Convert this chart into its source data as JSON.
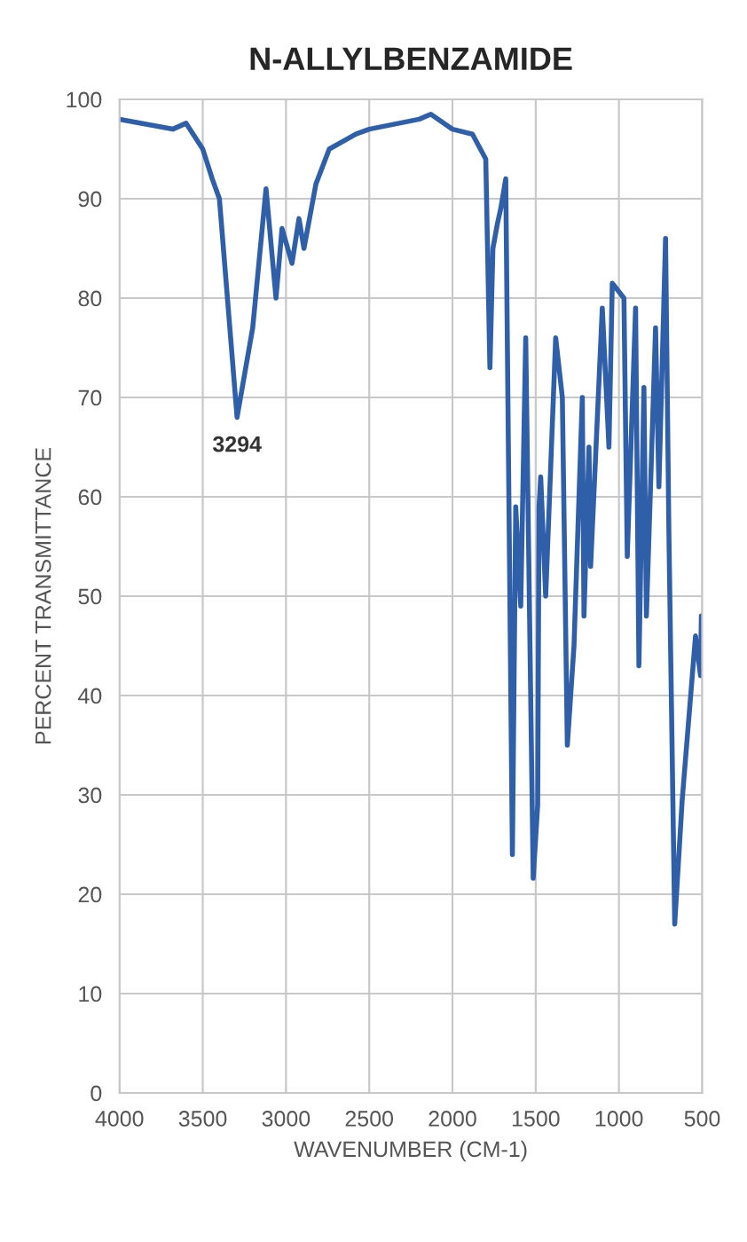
{
  "chart_data": {
    "type": "line",
    "title": "N-ALLYLBENZAMIDE",
    "xlabel": "WAVENUMBER (CM-1)",
    "ylabel": "PERCENT TRANSMITTANCE",
    "x": [
      4000,
      3680,
      3600,
      3500,
      3443,
      3400,
      3294,
      3200,
      3120,
      3060,
      3024,
      2964,
      2922,
      2892,
      2820,
      2740,
      2580,
      2500,
      2200,
      2130,
      2000,
      1880,
      1800,
      1775,
      1757,
      1730,
      1710,
      1680,
      1640,
      1620,
      1590,
      1560,
      1515,
      1488,
      1480,
      1470,
      1440,
      1380,
      1340,
      1310,
      1270,
      1220,
      1210,
      1180,
      1170,
      1100,
      1060,
      1040,
      970,
      950,
      900,
      880,
      850,
      835,
      780,
      760,
      720,
      700,
      665,
      620,
      540,
      510,
      505,
      500
    ],
    "series": [
      {
        "color": "#2f5fa8",
        "values": [
          98,
          97,
          97.6,
          95,
          92,
          90,
          68,
          77,
          91,
          80,
          87,
          83.5,
          88,
          85,
          91.5,
          95,
          96.5,
          97,
          98,
          98.5,
          97,
          96.5,
          94,
          73,
          85,
          87.5,
          89,
          92,
          24,
          59,
          49,
          76,
          21.6,
          29,
          59,
          62,
          50,
          76,
          70,
          35,
          45,
          70,
          48,
          65,
          53,
          79,
          65,
          81.5,
          80,
          54,
          79,
          43,
          71,
          48,
          77,
          61,
          86,
          56.5,
          17,
          29.5,
          46,
          42,
          48,
          47
        ]
      }
    ],
    "xlim": [
      4000,
      500
    ],
    "xticks": [
      4000,
      3500,
      3000,
      2500,
      2000,
      1500,
      1000,
      500
    ],
    "ylim": [
      0,
      100
    ],
    "yticks": [
      0,
      10,
      20,
      30,
      40,
      50,
      60,
      70,
      80,
      90,
      100
    ],
    "grid": true,
    "marker": "none",
    "line_style": "solid",
    "annotations": [
      {
        "text": "3294",
        "x": 3294,
        "y": 68
      }
    ]
  }
}
